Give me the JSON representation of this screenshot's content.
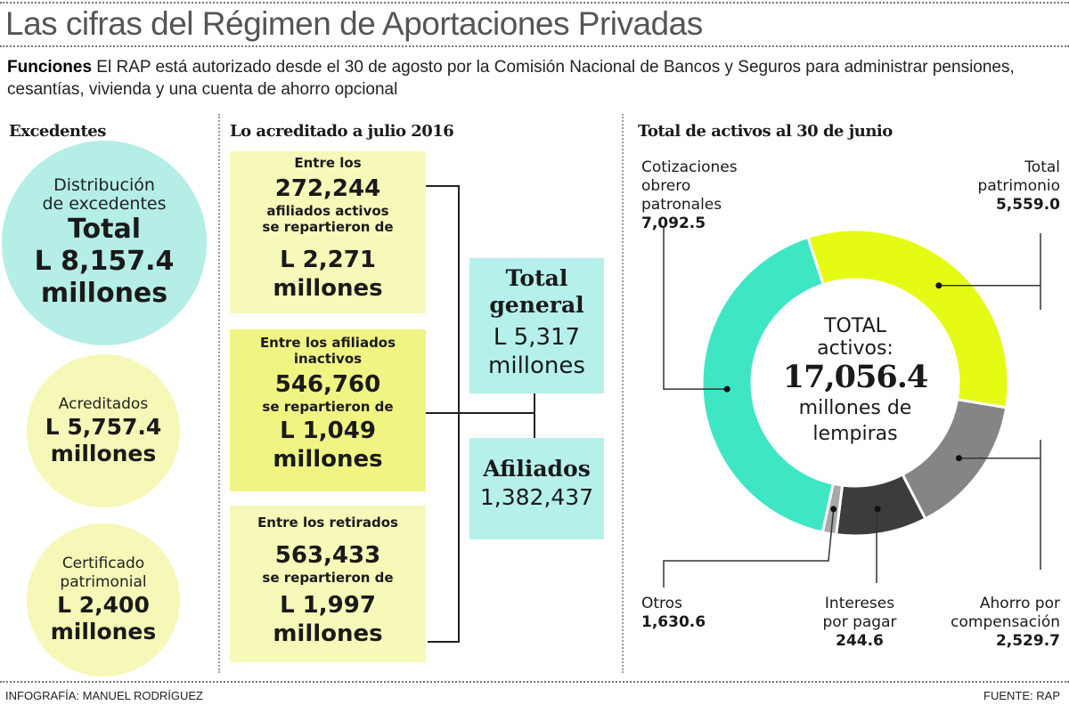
{
  "title": "Las cifras del Régimen de Aportaciones Privadas",
  "lead": {
    "label": "Funciones",
    "text": "El RAP está autorizado desde el 30 de agosto por la Comisión Nacional de Bancos y Seguros para administrar pensiones, cesantías, vivienda y una cuenta de ahorro opcional"
  },
  "excedentes": {
    "heading": "Excedentes",
    "total": {
      "label1": "Distribución",
      "label2": "de excedentes",
      "word": "Total",
      "amount": "L 8,157.4",
      "unit": "millones",
      "color": "#b4eee6"
    },
    "acreditados": {
      "label": "Acreditados",
      "amount": "L 5,757.4",
      "unit": "millones",
      "color": "#f5f8b6"
    },
    "certificado": {
      "label1": "Certificado",
      "label2": "patrimonial",
      "amount": "L 2,400",
      "unit": "millones",
      "color": "#f5f8b6"
    }
  },
  "acreditado": {
    "heading": "Lo acreditado a julio 2016",
    "boxes": [
      {
        "intro": "Entre los",
        "count": "272,244",
        "desc1": "afiliados activos",
        "desc2": "se repartieron de",
        "amount": "L 2,271",
        "unit": "millones"
      },
      {
        "intro": "Entre los afiliados",
        "intro2": "inactivos",
        "count": "546,760",
        "desc2": "se repartieron de",
        "amount": "L 1,049",
        "unit": "millones"
      },
      {
        "intro": "Entre los retirados",
        "count": "563,433",
        "desc2": "se repartieron de",
        "amount": "L 1,997",
        "unit": "millones"
      }
    ],
    "total_general": {
      "title1": "Total",
      "title2": "general",
      "amount": "L 5,317",
      "unit": "millones"
    },
    "afiliados": {
      "title": "Afiliados",
      "value": "1,382,437"
    }
  },
  "chart_data": {
    "type": "pie",
    "donut": true,
    "title": "Total de activos al 30 de junio",
    "center_text": {
      "line1": "TOTAL",
      "line2": "activos:",
      "value": "17,056.4",
      "line3": "millones de",
      "line4": "lempiras"
    },
    "slices": [
      {
        "label": "Total patrimonio",
        "value": 5559.0,
        "value_text": "5,559.0",
        "color": "#e6fb14"
      },
      {
        "label": "Ahorro por compensación",
        "value": 2529.7,
        "value_text": "2,529.7",
        "color": "#858585"
      },
      {
        "label": "Otros",
        "value": 1630.6,
        "value_text": "1,630.6",
        "color": "#3c3c3c"
      },
      {
        "label": "Intereses por pagar",
        "value": 244.6,
        "value_text": "244.6",
        "color": "#a8a8a8"
      },
      {
        "label": "Cotizaciones obrero patronales",
        "value": 7092.5,
        "value_text": "7,092.5",
        "color": "#3ee6c4"
      }
    ],
    "labels": {
      "cotizaciones": [
        "Cotizaciones",
        "obrero",
        "patronales"
      ],
      "patrimonio": [
        "Total",
        "patrimonio"
      ],
      "otros": [
        "Otros"
      ],
      "intereses": [
        "Intereses",
        "por pagar"
      ],
      "ahorro": [
        "Ahorro por",
        "compensación"
      ]
    }
  },
  "footer": {
    "credit": "INFOGRAFÍA: MANUEL RODRÍGUEZ",
    "source": "FUENTE: RAP"
  }
}
